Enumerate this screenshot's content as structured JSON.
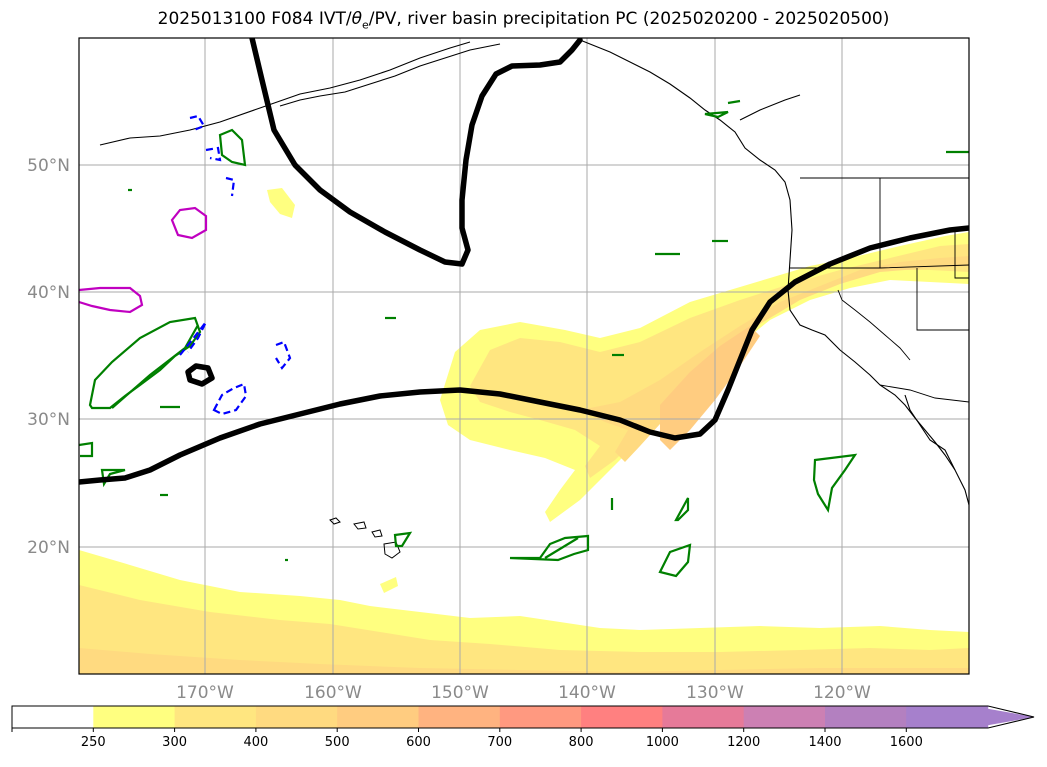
{
  "title": {
    "prefix": "2025013100 F084 IVT/",
    "theta": "θ",
    "theta_sub": "e",
    "suffix": "/PV, river basin precipitation PC (2025020200 - 2025020500)"
  },
  "map": {
    "lat_labels": [
      "50°N",
      "40°N",
      "30°N",
      "20°N"
    ],
    "lon_labels": [
      "170°W",
      "160°W",
      "150°W",
      "140°W",
      "130°W",
      "120°W"
    ],
    "ivt_fill_colors": [
      "#ffff80",
      "#ffe680",
      "#ffcc80"
    ],
    "thick_contour_color": "#000000",
    "green_contour_color": "#008000",
    "blue_dashed_color": "#0000ff",
    "magenta_contour_color": "#c000c0"
  },
  "colorbar": {
    "ticks": [
      "250",
      "300",
      "400",
      "500",
      "600",
      "700",
      "800",
      "1000",
      "1200",
      "1400",
      "1600"
    ],
    "colors": [
      "#ffffff",
      "#ffff80",
      "#ffe680",
      "#ffda80",
      "#ffcc80",
      "#ffb380",
      "#ff9980",
      "#ff8080",
      "#e67a99",
      "#cc80b3",
      "#b380c0",
      "#a680cc"
    ]
  }
}
